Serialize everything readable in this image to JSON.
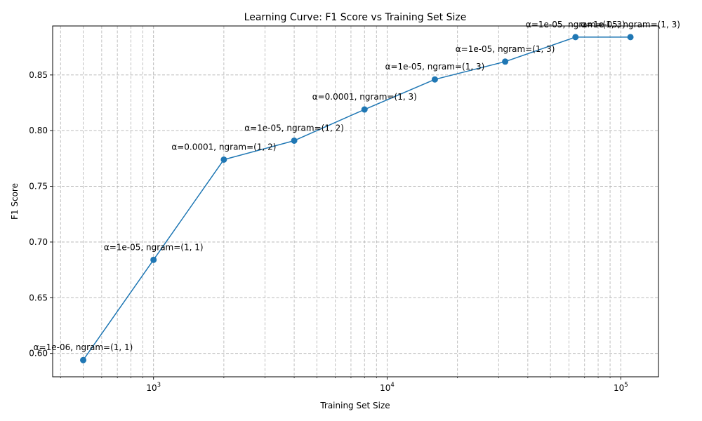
{
  "chart_data": {
    "type": "line",
    "title": "Learning Curve: F1 Score vs Training Set Size",
    "xlabel": "Training Set Size",
    "ylabel": "F1 Score",
    "xscale": "log",
    "xlim": [
      370,
      145000
    ],
    "ylim": [
      0.579,
      0.894
    ],
    "grid": "both (major and minor), dashed gray",
    "x_ticks": [
      {
        "value": 1000,
        "base": "10",
        "exp": "3"
      },
      {
        "value": 10000,
        "base": "10",
        "exp": "4"
      },
      {
        "value": 100000,
        "base": "10",
        "exp": "5"
      }
    ],
    "y_ticks": [
      "0.60",
      "0.65",
      "0.70",
      "0.75",
      "0.80",
      "0.85"
    ],
    "color": "#1f77b4",
    "points": [
      {
        "x": 500,
        "y": 0.594,
        "label": "α=1e-06, ngram=(1, 1)"
      },
      {
        "x": 1000,
        "y": 0.684,
        "label": "α=1e-05, ngram=(1, 1)"
      },
      {
        "x": 2000,
        "y": 0.774,
        "label": "α=0.0001, ngram=(1, 2)"
      },
      {
        "x": 4000,
        "y": 0.791,
        "label": "α=1e-05, ngram=(1, 2)"
      },
      {
        "x": 8000,
        "y": 0.819,
        "label": "α=0.0001, ngram=(1, 3)"
      },
      {
        "x": 16000,
        "y": 0.846,
        "label": "α=1e-05, ngram=(1, 3)"
      },
      {
        "x": 32000,
        "y": 0.862,
        "label": "α=1e-05, ngram=(1, 3)"
      },
      {
        "x": 64000,
        "y": 0.884,
        "label": "α=1e-05, ngram=(1, 3)"
      },
      {
        "x": 110000,
        "y": 0.884,
        "label": "α=1e-05, ngram=(1, 3)"
      }
    ]
  }
}
